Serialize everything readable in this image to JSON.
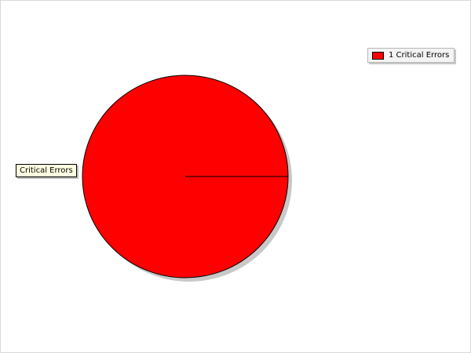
{
  "chart_data": {
    "type": "pie",
    "title": "",
    "slices": [
      {
        "label": "Critical Errors",
        "value": 1,
        "color": "#ff0000"
      }
    ],
    "legend": {
      "placement": "top-right",
      "entries": [
        {
          "count": 1,
          "label": "Critical Errors",
          "text": "1 Critical Errors",
          "color": "#ff0000"
        }
      ]
    }
  }
}
